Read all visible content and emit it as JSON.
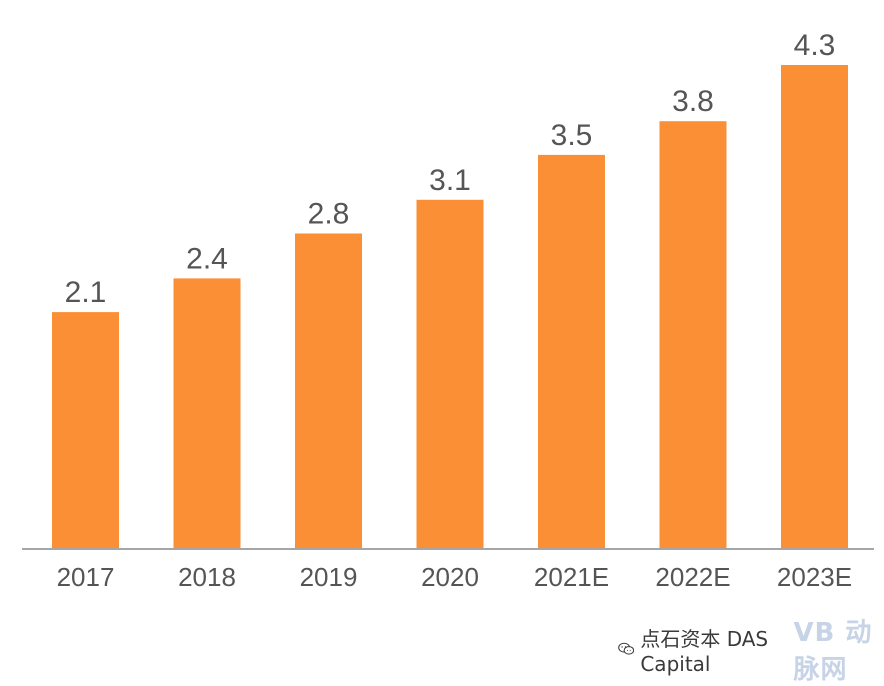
{
  "chart_data": {
    "type": "bar",
    "categories": [
      "2017",
      "2018",
      "2019",
      "2020",
      "2021E",
      "2022E",
      "2023E"
    ],
    "values": [
      2.1,
      2.4,
      2.8,
      3.1,
      3.5,
      3.8,
      4.3
    ],
    "data_labels": [
      "2.1",
      "2.4",
      "2.8",
      "3.1",
      "3.5",
      "3.8",
      "4.3"
    ],
    "title": "",
    "xlabel": "",
    "ylabel": "",
    "ylim": [
      0,
      4.3
    ],
    "grid": false,
    "legend": "none",
    "bar_color": "#fa8f36",
    "axis_color": "#a6a6a6",
    "text_color": "#555555"
  },
  "watermark": {
    "source": "点石资本 DAS Capital",
    "logo_icon": "wechat-icon",
    "mark": "VB 动脉网"
  }
}
